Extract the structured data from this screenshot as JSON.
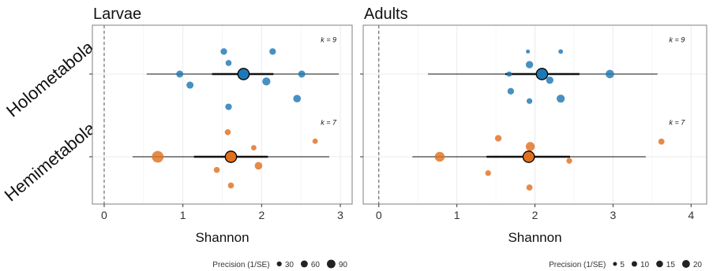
{
  "colors": {
    "holometabola": "#1f78b4",
    "hemimetabola": "#e0701e",
    "panel_border": "#7f7f7f",
    "grid": "#ebebeb",
    "interval": "#111111",
    "zero_line": "#555555"
  },
  "chart_data": [
    {
      "type": "scatter",
      "title": "Larvae",
      "xlabel": "Shannon",
      "ylabel": "",
      "xlim": [
        -0.15,
        3.15
      ],
      "xticks": [
        0,
        1,
        2,
        3
      ],
      "xtick_labels": [
        "0",
        "1",
        "2",
        "3"
      ],
      "categories": [
        "Holometabola",
        "Hemimetabola"
      ],
      "zero_line": 0,
      "grid": true,
      "legend": {
        "title": "Precision (1/SE)",
        "placement": "bottom-right",
        "values": [
          30,
          60,
          90
        ],
        "labels": [
          "30",
          "60",
          "90"
        ]
      },
      "series": [
        {
          "name": "Holometabola",
          "k_label": "k = 9",
          "k_x": 2.95,
          "k_y": 0.78,
          "estimate": 1.77,
          "ci": [
            1.37,
            2.15
          ],
          "pi": [
            0.54,
            2.98
          ],
          "points": [
            {
              "x": 1.52,
              "y": 0.55,
              "precision": 30
            },
            {
              "x": 2.14,
              "y": 0.55,
              "precision": 30
            },
            {
              "x": 1.58,
              "y": 0.27,
              "precision": 25
            },
            {
              "x": 0.96,
              "y": 0.0,
              "precision": 35
            },
            {
              "x": 2.51,
              "y": 0.0,
              "precision": 35
            },
            {
              "x": 1.09,
              "y": -0.27,
              "precision": 35
            },
            {
              "x": 2.06,
              "y": -0.18,
              "precision": 45
            },
            {
              "x": 2.45,
              "y": -0.6,
              "precision": 40
            },
            {
              "x": 1.58,
              "y": -0.8,
              "precision": 30
            }
          ]
        },
        {
          "name": "Hemimetabola",
          "k_label": "k = 7",
          "k_x": 2.95,
          "k_y": 0.78,
          "estimate": 1.61,
          "ci": [
            1.14,
            2.08
          ],
          "pi": [
            0.36,
            2.86
          ],
          "points": [
            {
              "x": 1.57,
              "y": 0.6,
              "precision": 25
            },
            {
              "x": 2.68,
              "y": 0.38,
              "precision": 20
            },
            {
              "x": 1.9,
              "y": 0.22,
              "precision": 20
            },
            {
              "x": 0.68,
              "y": 0.0,
              "precision": 95
            },
            {
              "x": 1.96,
              "y": -0.22,
              "precision": 40
            },
            {
              "x": 1.43,
              "y": -0.32,
              "precision": 25
            },
            {
              "x": 1.61,
              "y": -0.7,
              "precision": 25
            }
          ]
        }
      ]
    },
    {
      "type": "scatter",
      "title": "Adults",
      "xlabel": "Shannon",
      "ylabel": "",
      "xlim": [
        -0.2,
        4.2
      ],
      "xticks": [
        0,
        1,
        2,
        3,
        4
      ],
      "xtick_labels": [
        "0",
        "1",
        "2",
        "3",
        "4"
      ],
      "categories": [
        "Holometabola",
        "Hemimetabola"
      ],
      "zero_line": 0,
      "grid": true,
      "legend": {
        "title": "Precision (1/SE)",
        "placement": "bottom-right",
        "values": [
          5,
          10,
          15,
          20
        ],
        "labels": [
          "5",
          "10",
          "15",
          "20"
        ]
      },
      "series": [
        {
          "name": "Holometabola",
          "k_label": "k = 9",
          "k_x": 3.92,
          "k_y": 0.78,
          "estimate": 2.09,
          "ci": [
            1.62,
            2.57
          ],
          "pi": [
            0.63,
            3.57
          ],
          "points": [
            {
              "x": 1.91,
              "y": 0.55,
              "precision": 3
            },
            {
              "x": 2.33,
              "y": 0.55,
              "precision": 4
            },
            {
              "x": 1.93,
              "y": 0.23,
              "precision": 10
            },
            {
              "x": 1.67,
              "y": 0.0,
              "precision": 5
            },
            {
              "x": 2.96,
              "y": 0.0,
              "precision": 13
            },
            {
              "x": 2.19,
              "y": -0.15,
              "precision": 10
            },
            {
              "x": 1.69,
              "y": -0.42,
              "precision": 8
            },
            {
              "x": 1.93,
              "y": -0.66,
              "precision": 6
            },
            {
              "x": 2.33,
              "y": -0.6,
              "precision": 12
            }
          ]
        },
        {
          "name": "Hemimetabola",
          "k_label": "k = 7",
          "k_x": 3.92,
          "k_y": 0.78,
          "estimate": 1.92,
          "ci": [
            1.38,
            2.45
          ],
          "pi": [
            0.43,
            3.42
          ],
          "points": [
            {
              "x": 1.53,
              "y": 0.45,
              "precision": 8
            },
            {
              "x": 3.62,
              "y": 0.37,
              "precision": 7
            },
            {
              "x": 1.94,
              "y": 0.25,
              "precision": 15
            },
            {
              "x": 0.78,
              "y": 0.0,
              "precision": 18
            },
            {
              "x": 2.44,
              "y": -0.1,
              "precision": 6
            },
            {
              "x": 1.4,
              "y": -0.4,
              "precision": 6
            },
            {
              "x": 1.93,
              "y": -0.75,
              "precision": 7
            }
          ]
        }
      ]
    }
  ]
}
